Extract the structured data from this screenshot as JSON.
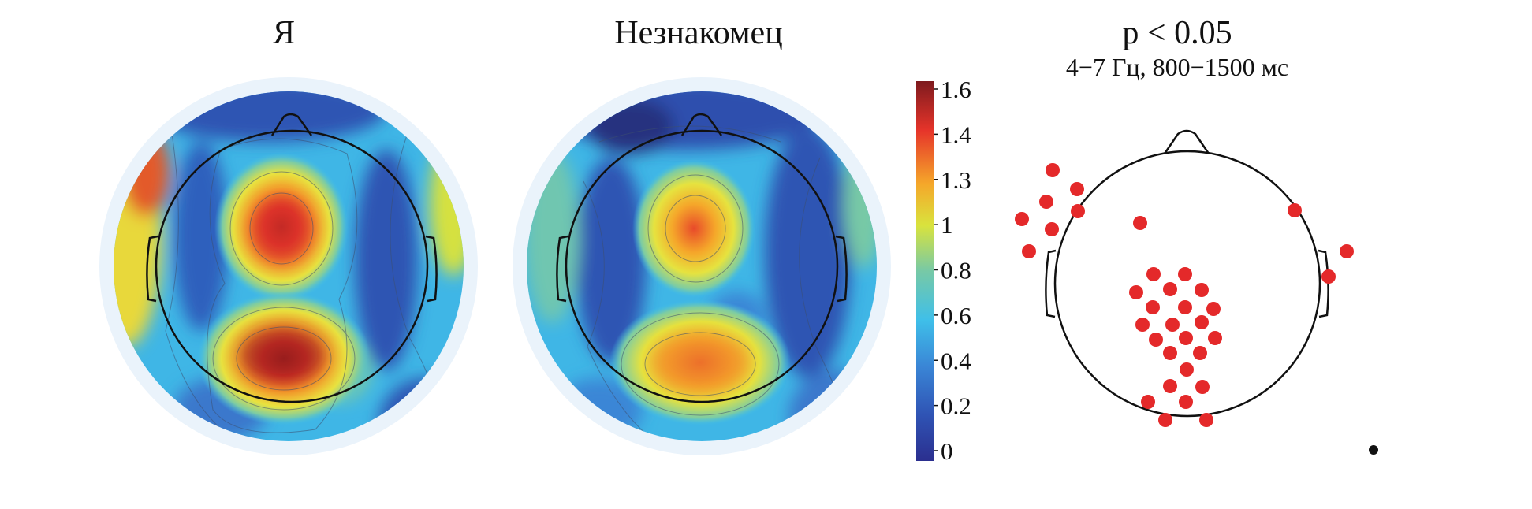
{
  "panels": [
    {
      "title": "Я"
    },
    {
      "title": "Незнакомец"
    },
    {
      "title": "p < 0.05",
      "subtitle": "4−7 Гц, 800−1500 мс"
    }
  ],
  "colorbar": {
    "ticks": [
      "1.6",
      "1.4",
      "1.3",
      "1",
      "0.8",
      "0.6",
      "0.4",
      "0.2",
      "0"
    ],
    "colormap": "jet"
  },
  "chart_data": {
    "type": "heatmap",
    "description_free": true,
    "color_range": [
      0,
      1.6
    ],
    "colorbar_ticks": [
      1.6,
      1.4,
      1.3,
      1,
      0.8,
      0.6,
      0.4,
      0.2,
      0
    ],
    "maps": [
      {
        "title": "Я",
        "peaks": [
          {
            "region": "central",
            "value": 1.4
          },
          {
            "region": "parietal-occipital",
            "value": 1.6
          },
          {
            "region": "left-frontal-temporal",
            "value": 1.3
          },
          {
            "region": "right-temporal",
            "value": 0.9
          }
        ]
      },
      {
        "title": "Незнакомец",
        "peaks": [
          {
            "region": "central",
            "value": 1.3
          },
          {
            "region": "parietal-occipital",
            "value": 1.3
          },
          {
            "region": "right-temporal",
            "value": 0.8
          }
        ]
      }
    ],
    "significance_map": {
      "title": "p < 0.05",
      "subtitle": "4−7 Гц, 800−1500 мс",
      "significant_electrode_count": 35
    }
  }
}
